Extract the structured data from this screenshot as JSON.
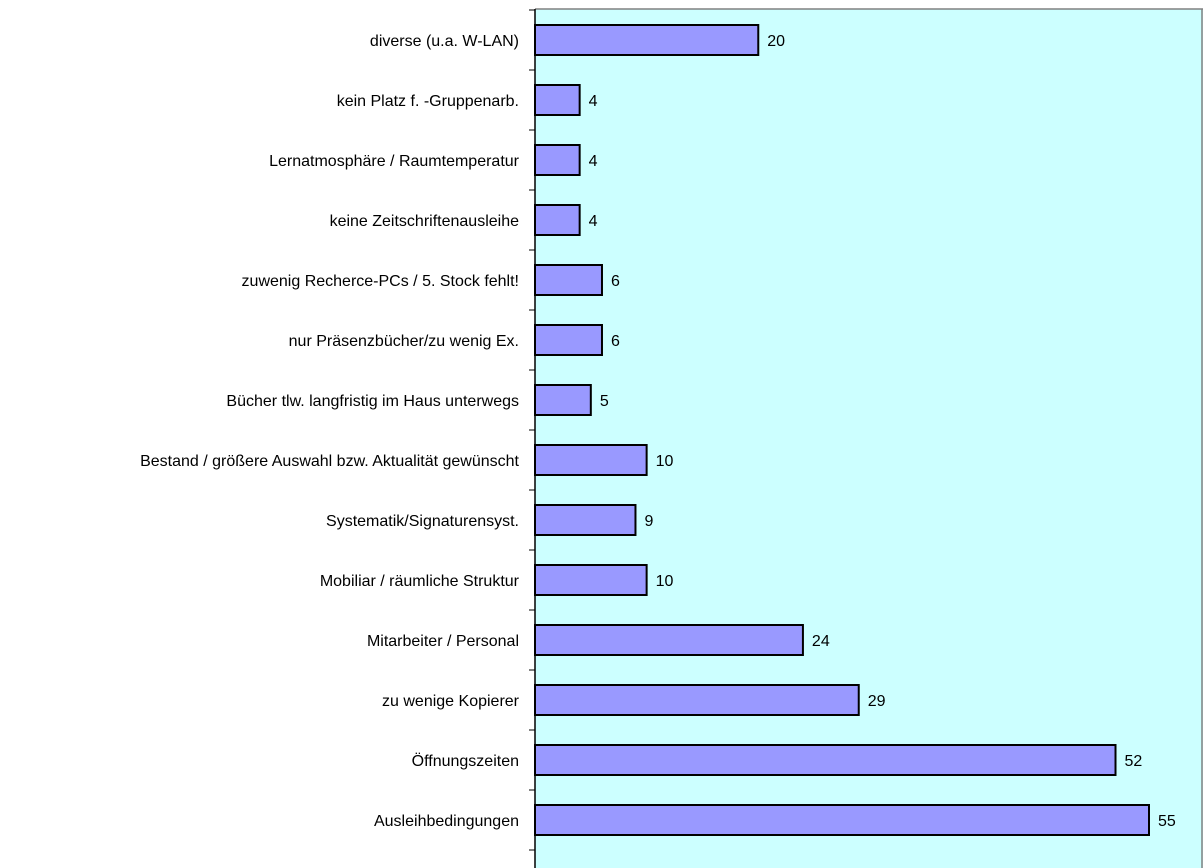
{
  "chart_data": {
    "type": "bar",
    "orientation": "horizontal",
    "categories": [
      "diverse (u.a. W-LAN)",
      "kein Platz f. -Gruppenarb.",
      "Lernatmosphäre / Raumtemperatur",
      "keine Zeitschriftenausleihe",
      "zuwenig Recherce-PCs / 5. Stock fehlt!",
      "nur Präsenzbücher/zu wenig Ex.",
      "Bücher tlw. langfristig im Haus unterwegs",
      "Bestand / größere Auswahl bzw. Aktualität gewünscht",
      "Systematik/Signaturensyst.",
      "Mobiliar / räumliche Struktur",
      "Mitarbeiter / Personal",
      "zu wenige Kopierer",
      "Öffnungszeiten",
      "Ausleihbedingungen"
    ],
    "values": [
      20,
      4,
      4,
      4,
      6,
      6,
      5,
      10,
      9,
      10,
      24,
      29,
      52,
      55
    ],
    "data_labels": [
      "20",
      "4",
      "4",
      "4",
      "6",
      "6",
      "5",
      "10",
      "9",
      "10",
      "24",
      "29",
      "52",
      "55"
    ],
    "xlim": [
      0,
      60
    ],
    "grid": false,
    "legend": "none",
    "colors": {
      "bar_fill": "#9999ff",
      "bar_stroke": "#000000",
      "plot_background": "#ccffff",
      "axis": "#000000",
      "plot_border": "#808080"
    }
  }
}
